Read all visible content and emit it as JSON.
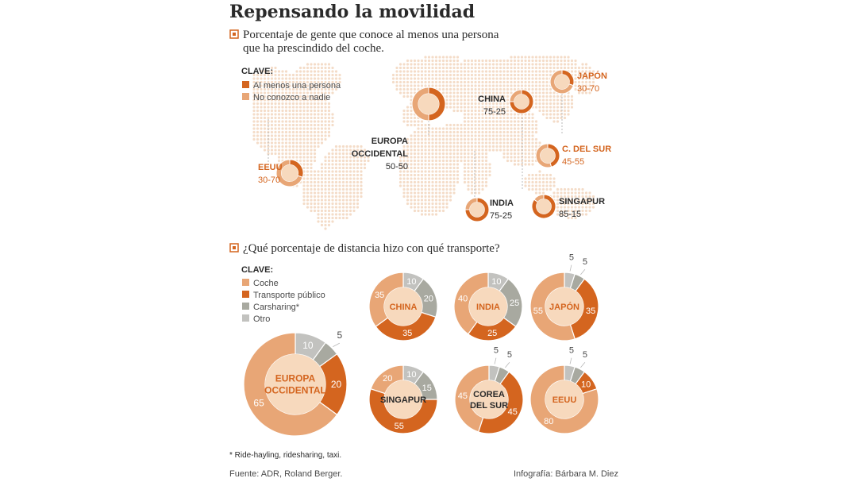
{
  "title": "Repensando la movilidad",
  "section1": {
    "heading_line1": "Porcentaje de gente que conoce al menos una persona",
    "heading_line2": "que ha prescindido del coche.",
    "key_title": "CLAVE:",
    "key_items": [
      {
        "label": "Al menos una persona",
        "color": "#d4651f"
      },
      {
        "label": "No conozco a nadie",
        "color": "#e8a676"
      }
    ]
  },
  "section2": {
    "heading": "¿Qué porcentaje de distancia hizo con qué transporte?",
    "key_title": "CLAVE:",
    "key_items": [
      {
        "label": "Coche",
        "color": "#e8a676"
      },
      {
        "label": "Transporte público",
        "color": "#d4651f"
      },
      {
        "label": "Carsharing*",
        "color": "#a8a9a0"
      },
      {
        "label": "Otro",
        "color": "#c2c2bf"
      }
    ]
  },
  "footnote": "* Ride-hayling, ridesharing, taxi.",
  "source": "Fuente: ADR, Roland Berger.",
  "credit": "Infografía: Bárbara M. Diez",
  "colors": {
    "dark": "#d4651f",
    "light": "#e8a676",
    "gray": "#a8a9a0",
    "lightgray": "#c2c2bf",
    "mapdot": "#f4dcc8",
    "center": "#f7d9bd"
  },
  "chart_data": [
    {
      "type": "pie",
      "title": "Porcentaje de gente que conoce al menos una persona que ha prescindido del coche.",
      "series_labels": [
        "Al menos una persona",
        "No conozco a nadie"
      ],
      "regions": [
        {
          "name": "EEUU",
          "label": "EEUU",
          "value_text": "30-70",
          "values": [
            30,
            70
          ]
        },
        {
          "name": "Europa occidental",
          "label_lines": [
            "EUROPA",
            "OCCIDENTAL"
          ],
          "value_text": "50-50",
          "values": [
            50,
            50
          ]
        },
        {
          "name": "India",
          "label": "INDIA",
          "value_text": "75-25",
          "values": [
            75,
            25
          ]
        },
        {
          "name": "China",
          "label": "CHINA",
          "value_text": "75-25",
          "values": [
            75,
            25
          ]
        },
        {
          "name": "Japón",
          "label": "JAPÓN",
          "value_text": "30-70",
          "values": [
            30,
            70
          ]
        },
        {
          "name": "C. del Sur",
          "label": "C. DEL SUR",
          "value_text": "45-55",
          "values": [
            45,
            55
          ]
        },
        {
          "name": "Singapur",
          "label": "SINGAPUR",
          "value_text": "85-15",
          "values": [
            85,
            15
          ]
        }
      ]
    },
    {
      "type": "pie",
      "title": "¿Qué porcentaje de distancia hizo con qué transporte?",
      "categories": [
        "Coche",
        "Transporte público",
        "Carsharing*",
        "Otro"
      ],
      "regions": [
        {
          "name": "Europa occidental",
          "label_lines": [
            "EUROPA",
            "OCCIDENTAL"
          ],
          "values": [
            65,
            20,
            5,
            10
          ]
        },
        {
          "name": "China",
          "label_lines": [
            "CHINA"
          ],
          "values": [
            35,
            35,
            20,
            10
          ]
        },
        {
          "name": "India",
          "label_lines": [
            "INDIA"
          ],
          "values": [
            40,
            25,
            25,
            10
          ]
        },
        {
          "name": "Japón",
          "label_lines": [
            "JAPÓN"
          ],
          "values": [
            55,
            35,
            5,
            5
          ]
        },
        {
          "name": "Singapur",
          "label_lines": [
            "SINGAPUR"
          ],
          "values": [
            20,
            55,
            15,
            10
          ]
        },
        {
          "name": "Corea del Sur",
          "label_lines": [
            "COREA",
            "DEL SUR"
          ],
          "values": [
            45,
            45,
            5,
            5
          ]
        },
        {
          "name": "EEUU",
          "label_lines": [
            "EEUU"
          ],
          "values": [
            80,
            10,
            5,
            5
          ]
        }
      ]
    }
  ]
}
